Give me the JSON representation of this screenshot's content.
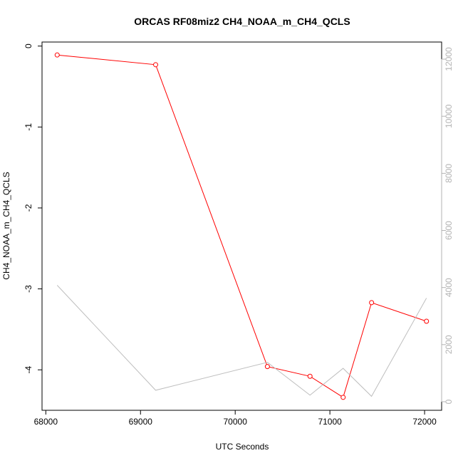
{
  "chart_data": {
    "type": "line",
    "title": "ORCAS RF08miz2 CH4_NOAA_m_CH4_QCLS",
    "xlabel": "UTC Seconds",
    "ylabel": "CH4_NOAA_m_CH4_QCLS",
    "xlim": [
      67960,
      72180
    ],
    "ylim": [
      -4.5,
      0.05
    ],
    "y2lim": [
      -300,
      12600
    ],
    "xticks": [
      68000,
      69000,
      70000,
      71000,
      72000
    ],
    "yticks": [
      0,
      -1,
      -2,
      -3,
      -4
    ],
    "y2ticks": [
      0,
      2000,
      4000,
      6000,
      8000,
      10000,
      12000
    ],
    "grid": false,
    "series": [
      {
        "axis": "left",
        "color": "#ff0000",
        "marker": "circle",
        "x": [
          68120,
          69160,
          70340,
          70790,
          71140,
          71440,
          72020
        ],
        "y": [
          -0.11,
          -0.23,
          -3.96,
          -4.08,
          -4.34,
          -3.17,
          -3.4
        ]
      },
      {
        "axis": "right",
        "color": "#bebebe",
        "marker": "none",
        "x": [
          68120,
          69160,
          70340,
          70790,
          71140,
          71440,
          72020
        ],
        "y": [
          4080,
          400,
          1380,
          230,
          1170,
          190,
          3630
        ]
      }
    ]
  }
}
